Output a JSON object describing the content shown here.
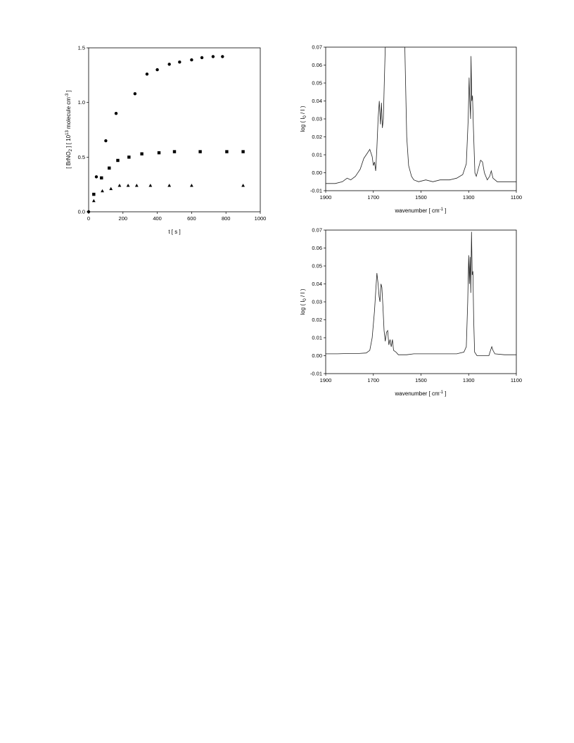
{
  "chart_data": [
    {
      "type": "scatter",
      "xlabel": "t [ s ]",
      "ylabel_main": "[ BrNO",
      "ylabel_sub": "2",
      "ylabel_mid": " ]  [ 10",
      "ylabel_sup": "13",
      "ylabel_unit": " molecule cm",
      "ylabel_sup2": "-3",
      "ylabel_end": " ]",
      "xlim": [
        0,
        1000
      ],
      "ylim": [
        0,
        1.5
      ],
      "x_ticks": [
        "0",
        "200",
        "400",
        "600",
        "800",
        "1000"
      ],
      "y_ticks": [
        "0.0",
        "0.5",
        "1.0",
        "1.5"
      ],
      "x_tick_values": [
        0,
        200,
        400,
        600,
        800,
        1000
      ],
      "y_tick_values": [
        0,
        0.5,
        1.0,
        1.5
      ],
      "series": [
        {
          "marker": "circle",
          "points": [
            [
              0,
              0
            ],
            [
              45,
              0.32
            ],
            [
              100,
              0.65
            ],
            [
              160,
              0.9
            ],
            [
              270,
              1.08
            ],
            [
              340,
              1.26
            ],
            [
              400,
              1.3
            ],
            [
              470,
              1.35
            ],
            [
              530,
              1.37
            ],
            [
              600,
              1.39
            ],
            [
              660,
              1.41
            ],
            [
              725,
              1.42
            ],
            [
              780,
              1.42
            ]
          ]
        },
        {
          "marker": "square",
          "points": [
            [
              30,
              0.16
            ],
            [
              75,
              0.31
            ],
            [
              120,
              0.4
            ],
            [
              170,
              0.47
            ],
            [
              235,
              0.5
            ],
            [
              310,
              0.53
            ],
            [
              410,
              0.54
            ],
            [
              500,
              0.55
            ],
            [
              650,
              0.55
            ],
            [
              805,
              0.55
            ],
            [
              900,
              0.55
            ]
          ]
        },
        {
          "marker": "triangle",
          "points": [
            [
              30,
              0.1
            ],
            [
              80,
              0.19
            ],
            [
              130,
              0.21
            ],
            [
              180,
              0.24
            ],
            [
              230,
              0.24
            ],
            [
              280,
              0.24
            ],
            [
              360,
              0.24
            ],
            [
              470,
              0.24
            ],
            [
              600,
              0.24
            ],
            [
              900,
              0.24
            ]
          ]
        }
      ]
    },
    {
      "type": "line",
      "xlabel_main": "wavenumber [ cm",
      "xlabel_sup": "-1",
      "xlabel_end": " ]",
      "ylabel_main": "log ( I",
      "ylabel_sub": "0",
      "ylabel_end": " / I )",
      "xlim": [
        1900,
        1100
      ],
      "ylim": [
        -0.01,
        0.07
      ],
      "x_ticks": [
        "1900",
        "1700",
        "1500",
        "1300",
        "1100"
      ],
      "x_tick_values": [
        1900,
        1700,
        1500,
        1300,
        1100
      ],
      "y_ticks": [
        "-0.01",
        "0.00",
        "0.01",
        "0.02",
        "0.03",
        "0.04",
        "0.05",
        "0.06",
        "0.07"
      ],
      "y_tick_values": [
        -0.01,
        0.0,
        0.01,
        0.02,
        0.03,
        0.04,
        0.05,
        0.06,
        0.07
      ],
      "points": [
        [
          1900,
          -0.006
        ],
        [
          1860,
          -0.006
        ],
        [
          1830,
          -0.005
        ],
        [
          1810,
          -0.003
        ],
        [
          1795,
          -0.004
        ],
        [
          1775,
          -0.002
        ],
        [
          1755,
          0.002
        ],
        [
          1740,
          0.008
        ],
        [
          1725,
          0.011
        ],
        [
          1715,
          0.013
        ],
        [
          1705,
          0.009
        ],
        [
          1700,
          0.004
        ],
        [
          1695,
          0.006
        ],
        [
          1690,
          0.001
        ],
        [
          1685,
          0.014
        ],
        [
          1680,
          0.03
        ],
        [
          1675,
          0.04
        ],
        [
          1670,
          0.027
        ],
        [
          1666,
          0.039
        ],
        [
          1662,
          0.025
        ],
        [
          1658,
          0.03
        ],
        [
          1654,
          0.05
        ],
        [
          1650,
          0.07
        ],
        [
          1600,
          0.07
        ],
        [
          1568,
          0.07
        ],
        [
          1560,
          0.02
        ],
        [
          1552,
          0.004
        ],
        [
          1540,
          -0.002
        ],
        [
          1530,
          -0.004
        ],
        [
          1510,
          -0.005
        ],
        [
          1480,
          -0.004
        ],
        [
          1450,
          -0.005
        ],
        [
          1420,
          -0.004
        ],
        [
          1400,
          -0.004
        ],
        [
          1380,
          -0.004
        ],
        [
          1350,
          -0.003
        ],
        [
          1325,
          -0.001
        ],
        [
          1310,
          0.005
        ],
        [
          1302,
          0.03
        ],
        [
          1298,
          0.053
        ],
        [
          1295,
          0.04
        ],
        [
          1292,
          0.03
        ],
        [
          1290,
          0.065
        ],
        [
          1287,
          0.04
        ],
        [
          1284,
          0.043
        ],
        [
          1280,
          0.025
        ],
        [
          1274,
          0.0
        ],
        [
          1268,
          -0.002
        ],
        [
          1258,
          0.003
        ],
        [
          1250,
          0.007
        ],
        [
          1242,
          0.006
        ],
        [
          1234,
          0.0
        ],
        [
          1222,
          -0.004
        ],
        [
          1212,
          -0.002
        ],
        [
          1205,
          0.001
        ],
        [
          1198,
          -0.003
        ],
        [
          1180,
          -0.005
        ],
        [
          1140,
          -0.005
        ],
        [
          1100,
          -0.005
        ]
      ]
    },
    {
      "type": "line",
      "xlabel_main": "wavenumber [ cm",
      "xlabel_sup": "-1",
      "xlabel_end": " ]",
      "ylabel_main": "log ( I",
      "ylabel_sub": "0",
      "ylabel_end": " / I )",
      "xlim": [
        1900,
        1100
      ],
      "ylim": [
        -0.01,
        0.07
      ],
      "x_ticks": [
        "1900",
        "1700",
        "1500",
        "1300",
        "1100"
      ],
      "x_tick_values": [
        1900,
        1700,
        1500,
        1300,
        1100
      ],
      "y_ticks": [
        "-0.01",
        "0.00",
        "0.01",
        "0.02",
        "0.03",
        "0.04",
        "0.05",
        "0.06",
        "0.07"
      ],
      "y_tick_values": [
        -0.01,
        0.0,
        0.01,
        0.02,
        0.03,
        0.04,
        0.05,
        0.06,
        0.07
      ],
      "points": [
        [
          1900,
          0.001
        ],
        [
          1850,
          0.001
        ],
        [
          1800,
          0.0012
        ],
        [
          1760,
          0.0012
        ],
        [
          1730,
          0.0015
        ],
        [
          1715,
          0.003
        ],
        [
          1705,
          0.01
        ],
        [
          1695,
          0.025
        ],
        [
          1688,
          0.04
        ],
        [
          1685,
          0.046
        ],
        [
          1680,
          0.04
        ],
        [
          1676,
          0.033
        ],
        [
          1672,
          0.03
        ],
        [
          1668,
          0.04
        ],
        [
          1664,
          0.038
        ],
        [
          1660,
          0.028
        ],
        [
          1655,
          0.014
        ],
        [
          1650,
          0.008
        ],
        [
          1645,
          0.013
        ],
        [
          1640,
          0.014
        ],
        [
          1635,
          0.006
        ],
        [
          1630,
          0.009
        ],
        [
          1625,
          0.005
        ],
        [
          1620,
          0.009
        ],
        [
          1615,
          0.003
        ],
        [
          1605,
          0.002
        ],
        [
          1595,
          0.0005
        ],
        [
          1560,
          0.0005
        ],
        [
          1530,
          0.001
        ],
        [
          1500,
          0.001
        ],
        [
          1450,
          0.001
        ],
        [
          1400,
          0.001
        ],
        [
          1350,
          0.001
        ],
        [
          1320,
          0.002
        ],
        [
          1310,
          0.005
        ],
        [
          1304,
          0.03
        ],
        [
          1300,
          0.056
        ],
        [
          1297,
          0.04
        ],
        [
          1294,
          0.055
        ],
        [
          1291,
          0.035
        ],
        [
          1288,
          0.069
        ],
        [
          1285,
          0.045
        ],
        [
          1282,
          0.047
        ],
        [
          1279,
          0.02
        ],
        [
          1275,
          0.002
        ],
        [
          1265,
          0.0
        ],
        [
          1240,
          0.0
        ],
        [
          1215,
          0.0
        ],
        [
          1208,
          0.003
        ],
        [
          1203,
          0.005
        ],
        [
          1198,
          0.003
        ],
        [
          1190,
          0.001
        ],
        [
          1150,
          0.0005
        ],
        [
          1100,
          0.0005
        ]
      ]
    }
  ]
}
